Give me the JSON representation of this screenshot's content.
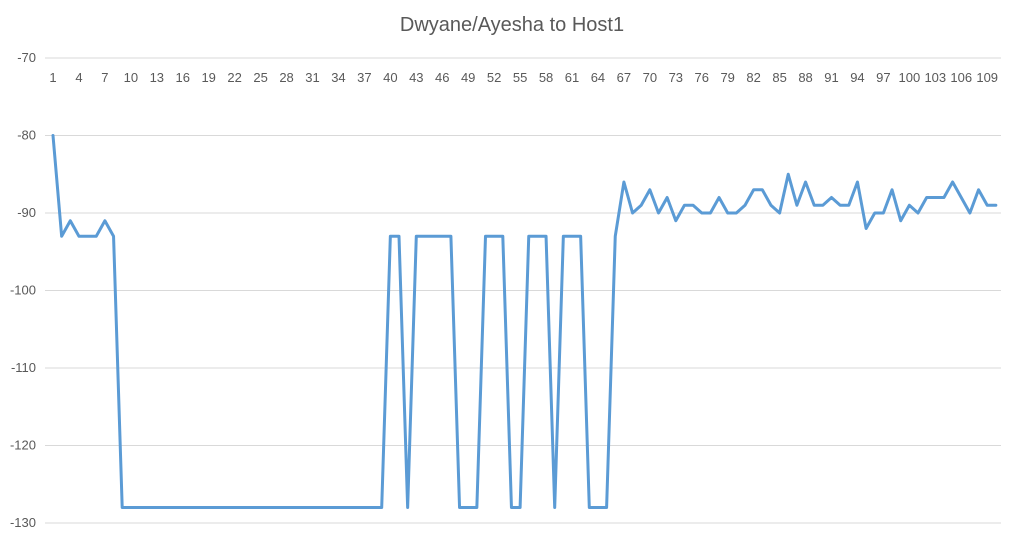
{
  "chart_data": {
    "type": "line",
    "title": "Dwyane/Ayesha to Host1",
    "xlabel": "",
    "ylabel": "",
    "ylim": [
      -130,
      -70
    ],
    "yticks": [
      -70,
      -80,
      -90,
      -100,
      -110,
      -120,
      -130
    ],
    "grid": true,
    "legend": "none",
    "x_axis_position": "top",
    "x_tick_labels": [
      "1",
      "4",
      "7",
      "10",
      "13",
      "16",
      "19",
      "22",
      "25",
      "28",
      "31",
      "34",
      "37",
      "40",
      "43",
      "46",
      "49",
      "52",
      "55",
      "58",
      "61",
      "64",
      "67",
      "70",
      "73",
      "76",
      "79",
      "82",
      "85",
      "88",
      "91",
      "94",
      "97",
      "100",
      "103",
      "106",
      "109"
    ],
    "series_color": "#5b9bd5",
    "x": [
      1,
      2,
      3,
      4,
      5,
      6,
      7,
      8,
      9,
      10,
      11,
      12,
      13,
      14,
      15,
      16,
      17,
      18,
      19,
      20,
      21,
      22,
      23,
      24,
      25,
      26,
      27,
      28,
      29,
      30,
      31,
      32,
      33,
      34,
      35,
      36,
      37,
      38,
      39,
      40,
      41,
      42,
      43,
      44,
      45,
      46,
      47,
      48,
      49,
      50,
      51,
      52,
      53,
      54,
      55,
      56,
      57,
      58,
      59,
      60,
      61,
      62,
      63,
      64,
      65,
      66,
      67,
      68,
      69,
      70,
      71,
      72,
      73,
      74,
      75,
      76,
      77,
      78,
      79,
      80,
      81,
      82,
      83,
      84,
      85,
      86,
      87,
      88,
      89,
      90,
      91,
      92,
      93,
      94,
      95,
      96,
      97,
      98,
      99,
      100,
      101,
      102,
      103,
      104,
      105,
      106,
      107,
      108,
      109,
      110
    ],
    "series": [
      {
        "values": [
          -80,
          -93,
          -91,
          -93,
          -93,
          -93,
          -91,
          -93,
          -128,
          -128,
          -128,
          -128,
          -128,
          -128,
          -128,
          -128,
          -128,
          -128,
          -128,
          -128,
          -128,
          -128,
          -128,
          -128,
          -128,
          -128,
          -128,
          -128,
          -128,
          -128,
          -128,
          -128,
          -128,
          -128,
          -128,
          -128,
          -128,
          -128,
          -128,
          -93,
          -93,
          -128,
          -93,
          -93,
          -93,
          -93,
          -93,
          -128,
          -128,
          -128,
          -93,
          -93,
          -93,
          -128,
          -128,
          -93,
          -93,
          -93,
          -128,
          -93,
          -93,
          -93,
          -128,
          -128,
          -128,
          -93,
          -86,
          -90,
          -89,
          -87,
          -90,
          -88,
          -91,
          -89,
          -89,
          -90,
          -90,
          -88,
          -90,
          -90,
          -89,
          -87,
          -87,
          -89,
          -90,
          -85,
          -89,
          -86,
          -89,
          -89,
          -88,
          -89,
          -89,
          -86,
          -92,
          -90,
          -90,
          -87,
          -91,
          -89,
          -90,
          -88,
          -88,
          -88,
          -86,
          -88,
          -90,
          -87,
          -89,
          -89
        ]
      }
    ]
  }
}
